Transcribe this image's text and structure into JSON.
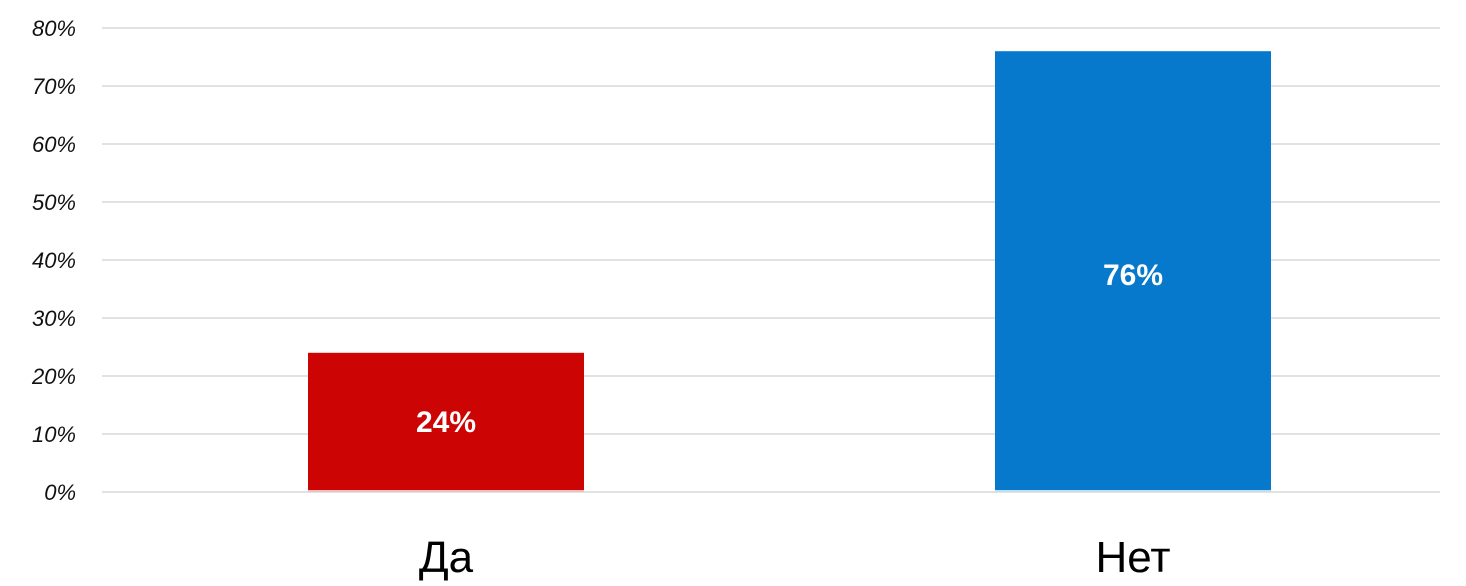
{
  "chart_data": {
    "type": "bar",
    "categories": [
      "Да",
      "Нет"
    ],
    "values": [
      24,
      76
    ],
    "data_labels": [
      "24%",
      "76%"
    ],
    "colors": [
      "#cc0404",
      "#0779cc"
    ],
    "title": "",
    "xlabel": "",
    "ylabel": "",
    "ylim": [
      0,
      80
    ],
    "y_ticks": [
      0,
      10,
      20,
      30,
      40,
      50,
      60,
      70,
      80
    ],
    "y_tick_labels": [
      "0%",
      "10%",
      "20%",
      "30%",
      "40%",
      "50%",
      "60%",
      "70%",
      "80%"
    ],
    "grid": true,
    "legend": "none"
  }
}
